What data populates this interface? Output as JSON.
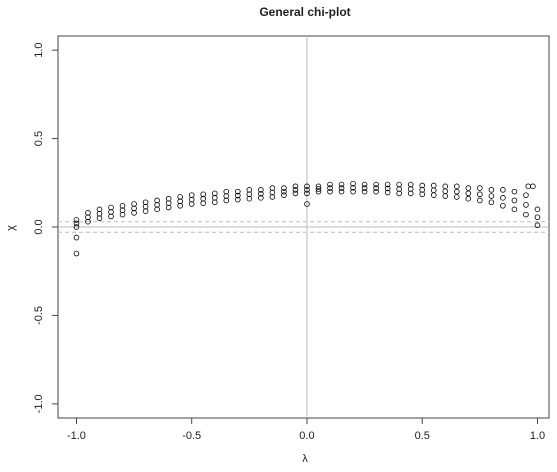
{
  "chart_data": {
    "type": "scatter",
    "title": "General chi-plot",
    "x_label": "λ",
    "y_label": "χ",
    "x": [
      -1.0,
      -0.95,
      -0.9,
      -0.85,
      -0.8,
      -0.75,
      -0.7,
      -0.65,
      -0.6,
      -0.55,
      -0.5,
      -0.45,
      -0.4,
      -0.35,
      -0.3,
      -0.25,
      -0.2,
      -0.15,
      -0.1,
      -0.05,
      0.0,
      0.05,
      0.1,
      0.15,
      0.2,
      0.25,
      0.3,
      0.35,
      0.4,
      0.45,
      0.5,
      0.55,
      0.6,
      0.65,
      0.7,
      0.75,
      0.8,
      0.85,
      0.9,
      0.95,
      1.0,
      -1.0,
      -0.95,
      -0.9,
      -0.85,
      -0.8,
      -0.75,
      -0.7,
      -0.65,
      -0.6,
      -0.55,
      -0.5,
      -0.45,
      -0.4,
      -0.35,
      -0.3,
      -0.25,
      -0.2,
      -0.15,
      -0.1,
      -0.05,
      0.0,
      0.05,
      0.1,
      0.15,
      0.2,
      0.25,
      0.3,
      0.35,
      0.4,
      0.45,
      0.5,
      0.55,
      0.6,
      0.65,
      0.7,
      0.75,
      0.8,
      0.85,
      0.9,
      0.95,
      1.0,
      -1.0,
      -0.95,
      -0.9,
      -0.85,
      -0.8,
      -0.75,
      -0.7,
      -0.65,
      -0.6,
      -0.55,
      -0.5,
      -0.45,
      -0.4,
      -0.35,
      -0.3,
      -0.25,
      -0.2,
      -0.15,
      -0.1,
      -0.05,
      0.0,
      0.05,
      0.1,
      0.15,
      0.2,
      0.25,
      0.3,
      0.35,
      0.4,
      0.45,
      0.5,
      0.55,
      0.6,
      0.65,
      0.7,
      0.75,
      0.8,
      0.85,
      0.9,
      0.95,
      1.0,
      -1.0,
      -1.0,
      0.0,
      0.96,
      0.98
    ],
    "y": [
      0.04,
      0.08,
      0.1,
      0.11,
      0.12,
      0.13,
      0.14,
      0.15,
      0.16,
      0.17,
      0.18,
      0.185,
      0.19,
      0.2,
      0.2,
      0.21,
      0.21,
      0.22,
      0.22,
      0.23,
      0.23,
      0.23,
      0.24,
      0.24,
      0.245,
      0.24,
      0.24,
      0.24,
      0.24,
      0.24,
      0.235,
      0.235,
      0.23,
      0.23,
      0.22,
      0.22,
      0.21,
      0.21,
      0.2,
      0.18,
      0.1,
      0.02,
      0.055,
      0.075,
      0.085,
      0.095,
      0.105,
      0.115,
      0.125,
      0.135,
      0.145,
      0.155,
      0.16,
      0.165,
      0.175,
      0.178,
      0.185,
      0.188,
      0.195,
      0.2,
      0.21,
      0.21,
      0.215,
      0.22,
      0.22,
      0.222,
      0.22,
      0.22,
      0.218,
      0.215,
      0.215,
      0.21,
      0.208,
      0.202,
      0.2,
      0.19,
      0.185,
      0.175,
      0.165,
      0.15,
      0.125,
      0.055,
      0.0,
      0.03,
      0.05,
      0.06,
      0.07,
      0.08,
      0.09,
      0.1,
      0.11,
      0.12,
      0.13,
      0.135,
      0.14,
      0.15,
      0.155,
      0.16,
      0.165,
      0.17,
      0.18,
      0.19,
      0.19,
      0.2,
      0.2,
      0.2,
      0.2,
      0.2,
      0.2,
      0.195,
      0.19,
      0.19,
      0.185,
      0.18,
      0.175,
      0.17,
      0.16,
      0.15,
      0.14,
      0.12,
      0.1,
      0.07,
      0.01,
      -0.15,
      -0.06,
      0.13,
      0.23,
      0.23
    ],
    "color": "#000000",
    "xlim": [
      -1.08,
      1.05
    ],
    "ylim": [
      -1.08,
      1.08
    ],
    "xticks": [
      {
        "value": -1,
        "label": "-1.0"
      },
      -0.5,
      {
        "value": 0,
        "label": "0.0"
      },
      0.5,
      {
        "value": 1,
        "label": "1.0"
      }
    ],
    "yticks": [
      {
        "value": -1,
        "label": "-1.0"
      },
      -0.5,
      {
        "value": 0,
        "label": "0.0"
      },
      0.5,
      {
        "value": 1,
        "label": "1.0"
      }
    ],
    "hlines": [
      {
        "value": 0,
        "dashed": false
      },
      {
        "value": 0.03,
        "dashed": true
      },
      {
        "value": -0.03,
        "dashed": true
      }
    ],
    "vlines": [
      {
        "value": 0,
        "dashed": false
      }
    ]
  }
}
